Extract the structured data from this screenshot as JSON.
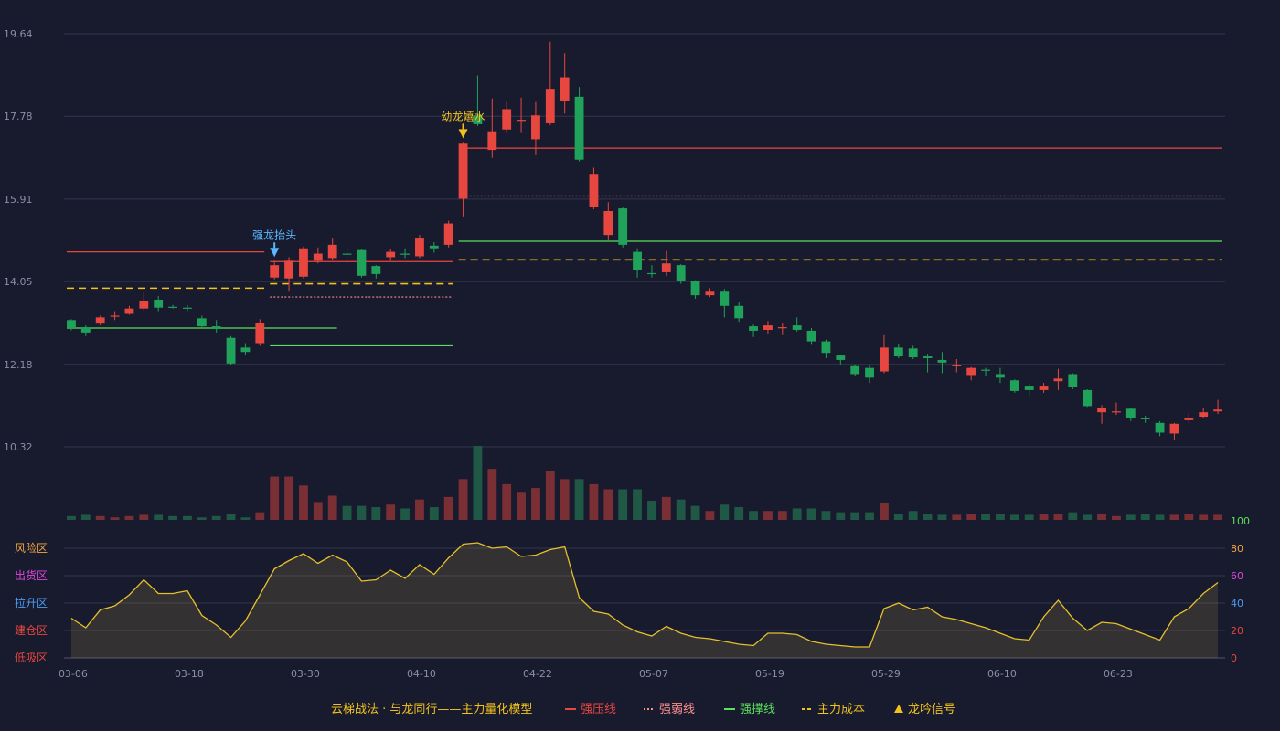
{
  "colors": {
    "background": "#181a2e",
    "up": "#e8473f",
    "down": "#1fa35a",
    "grid": "#34374d",
    "resist": "#e8473f",
    "weak": "#ff8f8f",
    "support": "#5be05b",
    "cost": "#f2c21b",
    "signal": "#f2c21b",
    "indicator": "#e6c02a"
  },
  "chart_data": {
    "type": "candlestick",
    "price_axis": {
      "ticks": [
        19.64,
        17.78,
        15.91,
        14.05,
        12.18,
        10.32
      ],
      "ylim": [
        10.32,
        19.64
      ]
    },
    "x_tick_labels": [
      "03-06",
      "03-18",
      "03-30",
      "04-10",
      "04-22",
      "05-07",
      "05-19",
      "05-29",
      "06-10",
      "06-23"
    ],
    "x_tick_index": [
      0,
      8,
      16,
      24,
      32,
      40,
      48,
      56,
      64,
      72
    ],
    "candles": [
      [
        13.18,
        13.0,
        13.2,
        12.95
      ],
      [
        13.02,
        12.9,
        13.06,
        12.82
      ],
      [
        13.1,
        13.24,
        13.28,
        13.06
      ],
      [
        13.26,
        13.28,
        13.38,
        13.18
      ],
      [
        13.32,
        13.44,
        13.5,
        13.3
      ],
      [
        13.44,
        13.62,
        13.8,
        13.4
      ],
      [
        13.64,
        13.46,
        13.72,
        13.38
      ],
      [
        13.48,
        13.46,
        13.52,
        13.44
      ],
      [
        13.46,
        13.44,
        13.52,
        13.38
      ],
      [
        13.22,
        13.04,
        13.28,
        13.0
      ],
      [
        13.04,
        12.98,
        13.18,
        12.9
      ],
      [
        12.78,
        12.2,
        12.82,
        12.16
      ],
      [
        12.56,
        12.46,
        12.66,
        12.4
      ],
      [
        12.66,
        13.12,
        13.2,
        12.6
      ],
      [
        14.14,
        14.42,
        14.52,
        14.1
      ],
      [
        14.12,
        14.52,
        14.6,
        13.82
      ],
      [
        14.16,
        14.8,
        14.84,
        14.12
      ],
      [
        14.52,
        14.68,
        14.82,
        14.46
      ],
      [
        14.58,
        14.88,
        15.02,
        14.54
      ],
      [
        14.68,
        14.66,
        14.86,
        14.46
      ],
      [
        14.76,
        14.18,
        14.78,
        14.14
      ],
      [
        14.4,
        14.22,
        14.42,
        14.12
      ],
      [
        14.6,
        14.72,
        14.78,
        14.52
      ],
      [
        14.68,
        14.66,
        14.8,
        14.58
      ],
      [
        14.62,
        15.02,
        15.1,
        14.58
      ],
      [
        14.86,
        14.8,
        14.94,
        14.7
      ],
      [
        14.88,
        15.36,
        15.42,
        14.82
      ],
      [
        15.92,
        17.16,
        17.2,
        15.52
      ],
      [
        17.8,
        17.6,
        18.7,
        17.56
      ],
      [
        17.02,
        17.44,
        18.18,
        16.84
      ],
      [
        17.48,
        17.94,
        18.1,
        17.4
      ],
      [
        17.7,
        17.7,
        18.2,
        17.4
      ],
      [
        17.26,
        17.8,
        18.1,
        16.9
      ],
      [
        17.62,
        18.4,
        19.46,
        17.58
      ],
      [
        18.12,
        18.66,
        19.2,
        17.84
      ],
      [
        18.22,
        16.8,
        18.44,
        16.76
      ],
      [
        15.74,
        16.48,
        16.62,
        15.68
      ],
      [
        15.1,
        15.64,
        15.84,
        14.98
      ],
      [
        15.7,
        14.88,
        15.72,
        14.82
      ],
      [
        14.72,
        14.3,
        14.8,
        14.14
      ],
      [
        14.24,
        14.22,
        14.42,
        14.14
      ],
      [
        14.26,
        14.46,
        14.74,
        14.18
      ],
      [
        14.42,
        14.06,
        14.44,
        14.0
      ],
      [
        14.06,
        13.74,
        14.08,
        13.66
      ],
      [
        13.74,
        13.82,
        13.9,
        13.7
      ],
      [
        13.82,
        13.5,
        13.88,
        13.24
      ],
      [
        13.5,
        13.22,
        13.58,
        13.14
      ],
      [
        13.04,
        12.94,
        13.08,
        12.8
      ],
      [
        12.96,
        13.06,
        13.16,
        12.88
      ],
      [
        13.02,
        13.02,
        13.1,
        12.84
      ],
      [
        13.06,
        12.96,
        13.24,
        12.92
      ],
      [
        12.94,
        12.7,
        13.0,
        12.62
      ],
      [
        12.7,
        12.44,
        12.74,
        12.32
      ],
      [
        12.38,
        12.28,
        12.4,
        12.18
      ],
      [
        12.14,
        11.96,
        12.18,
        11.92
      ],
      [
        12.1,
        11.88,
        12.16,
        11.76
      ],
      [
        12.02,
        12.56,
        12.84,
        11.98
      ],
      [
        12.56,
        12.36,
        12.64,
        12.32
      ],
      [
        12.54,
        12.34,
        12.6,
        12.3
      ],
      [
        12.36,
        12.32,
        12.42,
        12.0
      ],
      [
        12.28,
        12.22,
        12.46,
        11.98
      ],
      [
        12.16,
        12.16,
        12.3,
        12.0
      ],
      [
        11.94,
        12.1,
        12.12,
        11.82
      ],
      [
        12.06,
        12.04,
        12.1,
        11.92
      ],
      [
        11.96,
        11.88,
        12.1,
        11.76
      ],
      [
        11.82,
        11.58,
        11.84,
        11.54
      ],
      [
        11.7,
        11.6,
        11.74,
        11.44
      ],
      [
        11.6,
        11.7,
        11.76,
        11.54
      ],
      [
        11.8,
        11.86,
        12.08,
        11.6
      ],
      [
        11.96,
        11.66,
        11.98,
        11.62
      ],
      [
        11.6,
        11.24,
        11.62,
        11.22
      ],
      [
        11.1,
        11.2,
        11.26,
        10.84
      ],
      [
        11.12,
        11.12,
        11.32,
        11.04
      ],
      [
        11.18,
        10.98,
        11.2,
        10.9
      ],
      [
        10.98,
        10.94,
        11.02,
        10.86
      ],
      [
        10.86,
        10.64,
        10.9,
        10.56
      ],
      [
        10.62,
        10.84,
        10.86,
        10.48
      ],
      [
        10.92,
        10.96,
        11.08,
        10.86
      ],
      [
        11.0,
        11.1,
        11.2,
        10.96
      ],
      [
        11.12,
        11.16,
        11.38,
        11.06
      ]
    ],
    "volumes": [
      3,
      4,
      3,
      2,
      3,
      4,
      4,
      3,
      3,
      2,
      3,
      5,
      2,
      6,
      34,
      34,
      27,
      14,
      19,
      11,
      11,
      10,
      12,
      9,
      16,
      10,
      18,
      32,
      58,
      40,
      28,
      22,
      25,
      38,
      32,
      32,
      28,
      24,
      24,
      24,
      15,
      18,
      16,
      11,
      7,
      12,
      10,
      7,
      7,
      7,
      9,
      9,
      7,
      6,
      6,
      6,
      13,
      5,
      7,
      5,
      4,
      4,
      5,
      5,
      5,
      4,
      4,
      5,
      5,
      6,
      4,
      5,
      3,
      4,
      5,
      4,
      4,
      5,
      4,
      4
    ],
    "indicator": [
      29,
      22,
      35,
      38,
      46,
      57,
      47,
      47,
      49,
      31,
      24,
      15,
      27,
      46,
      65,
      71,
      76,
      69,
      75,
      70,
      56,
      57,
      64,
      58,
      68,
      61,
      73,
      83,
      84,
      80,
      81,
      74,
      75,
      79,
      81,
      44,
      34,
      32,
      24,
      19,
      16,
      23,
      18,
      15,
      14,
      12,
      10,
      9,
      18,
      18,
      17,
      12,
      10,
      9,
      8,
      8,
      36,
      40,
      35,
      37,
      30,
      28,
      25,
      22,
      18,
      14,
      13,
      30,
      42,
      29,
      20,
      26,
      25,
      21,
      17,
      13,
      30,
      36,
      47,
      55
    ],
    "indicator_axis": {
      "ticks": [
        0,
        20,
        40,
        60,
        80,
        100
      ],
      "ylim": [
        0,
        100
      ]
    },
    "zone_labels": [
      "风险区",
      "出货区",
      "拉升区",
      "建仓区",
      "低吸区"
    ],
    "zone_colors": [
      "#f2a541",
      "#d94ad9",
      "#4c9df0",
      "#e8473f",
      "#e8473f"
    ],
    "level_lines": [
      {
        "kind": "resist",
        "start": 0,
        "end": 13,
        "value": 14.72
      },
      {
        "kind": "cost",
        "start": 0,
        "end": 13,
        "value": 13.9
      },
      {
        "kind": "support",
        "start": 0,
        "end": 18,
        "value": 13.0
      },
      {
        "kind": "resist",
        "start": 14,
        "end": 26,
        "value": 14.5
      },
      {
        "kind": "cost",
        "start": 14,
        "end": 26,
        "value": 14.0
      },
      {
        "kind": "weak",
        "start": 14,
        "end": 26,
        "value": 13.7
      },
      {
        "kind": "support",
        "start": 14,
        "end": 26,
        "value": 12.6
      },
      {
        "kind": "resist",
        "start": 27,
        "end": 79,
        "value": 17.06
      },
      {
        "kind": "weak",
        "start": 27,
        "end": 79,
        "value": 15.98
      },
      {
        "kind": "support",
        "start": 27,
        "end": 79,
        "value": 14.96
      },
      {
        "kind": "cost",
        "start": 27,
        "end": 79,
        "value": 14.54
      }
    ],
    "signals": [
      {
        "index": 14,
        "label": "强龙抬头",
        "color": "#5ab8ff"
      },
      {
        "index": 27,
        "label": "幼龙嬉水",
        "color": "#f2c21b"
      }
    ],
    "legend": [
      {
        "label": "云梯战法 · 与龙同行——主力量化模型",
        "marker": "none",
        "color": "#f2c21b"
      },
      {
        "label": "强压线",
        "marker": "line",
        "color": "#e8473f"
      },
      {
        "label": "强弱线",
        "marker": "dotted",
        "color": "#ff8f8f"
      },
      {
        "label": "强撑线",
        "marker": "line",
        "color": "#5be05b"
      },
      {
        "label": "主力成本",
        "marker": "dashed",
        "color": "#f2c21b"
      },
      {
        "label": "龙吟信号",
        "marker": "triangle",
        "color": "#f2c21b"
      }
    ]
  }
}
